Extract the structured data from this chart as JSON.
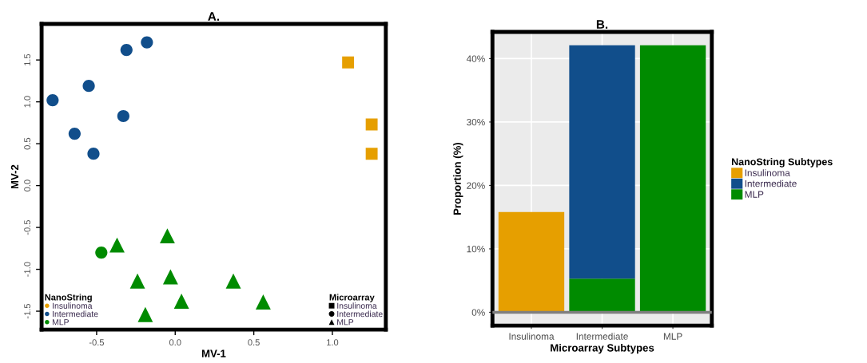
{
  "chart_data": [
    {
      "type": "scatter",
      "title": "A.",
      "xlabel": "MV-1",
      "ylabel": "MV-2",
      "xlim": [
        -0.85,
        1.34
      ],
      "ylim": [
        -1.72,
        1.93
      ],
      "xticks": [
        -0.5,
        {
          "value": 0,
          "label": "0.0"
        },
        0.5,
        {
          "value": 1,
          "label": "1.0"
        }
      ],
      "yticks": [
        -1.5,
        {
          "value": -1,
          "label": "-1.0"
        },
        -0.5,
        {
          "value": 0,
          "label": "0.0"
        },
        0.5,
        {
          "value": 1,
          "label": "1.0"
        },
        1.5
      ],
      "grid": false,
      "legend": [
        "bottom left",
        "bottom right"
      ],
      "legend_title": [
        "NanoString",
        "Microarray"
      ],
      "series": [
        {
          "name": "Insulinoma",
          "color": "#e69f00",
          "marker": "square",
          "x": [
            1.1,
            1.25,
            1.25
          ],
          "values": [
            1.47,
            0.73,
            0.38
          ]
        },
        {
          "name": "Intermediate",
          "color": "#114e8b",
          "marker": "circle",
          "x": [
            -0.18,
            -0.31,
            -0.55,
            -0.78,
            -0.33,
            -0.64,
            -0.52
          ],
          "values": [
            1.71,
            1.62,
            1.19,
            1.02,
            0.83,
            0.62,
            0.38
          ]
        },
        {
          "color": "#008b00",
          "marker": "circle",
          "x": [
            -0.47
          ],
          "values": [
            -0.8
          ]
        },
        {
          "name": "MLP",
          "color": "#008b00",
          "marker": "triangle",
          "x": [
            -0.37,
            -0.05,
            -0.24,
            -0.03,
            0.37,
            0.04,
            0.56,
            -0.19
          ],
          "values": [
            -0.71,
            -0.6,
            -1.14,
            -1.09,
            -1.14,
            -1.38,
            -1.39,
            -1.54
          ]
        }
      ]
    },
    {
      "type": "bar",
      "title": "B.",
      "xlabel": "Microarray Subtypes",
      "ylabel": "Proportion (%)",
      "categories": [
        "Insulinoma",
        "Intermediate",
        "MLP"
      ],
      "stacked": true,
      "ylim": [
        -2.1,
        44.2
      ],
      "yticks": [
        {
          "value": 0,
          "label": "0%"
        },
        {
          "value": 10,
          "label": "10%"
        },
        {
          "value": 20,
          "label": "20%"
        },
        {
          "value": 30,
          "label": "30%"
        },
        {
          "value": 40,
          "label": "40%"
        }
      ],
      "grid": true,
      "legend": "right",
      "legend_title": "NanoString Subtypes",
      "ref_lines": [
        {
          "axis": "y",
          "value": 0,
          "color": "#7f7f7f"
        }
      ],
      "series": [
        {
          "name": "MLP",
          "color": "#008b00",
          "values": [
            null,
            5.3,
            42.1
          ]
        },
        {
          "name": "Intermediate",
          "color": "#114e8b",
          "values": [
            null,
            36.8,
            null
          ]
        },
        {
          "name": "Insulinoma",
          "color": "#e69f00",
          "values": [
            15.8,
            null,
            null
          ]
        }
      ]
    }
  ]
}
